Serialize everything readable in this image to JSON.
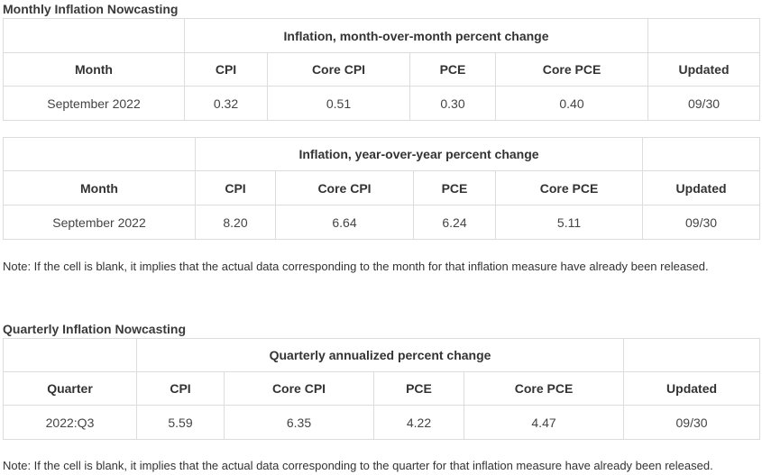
{
  "monthly": {
    "title": "Monthly Inflation Nowcasting",
    "mom": {
      "group_header": "Inflation, month-over-month percent change",
      "columns": [
        "Month",
        "CPI",
        "Core CPI",
        "PCE",
        "Core PCE",
        "Updated"
      ],
      "rows": [
        [
          "September 2022",
          "0.32",
          "0.51",
          "0.30",
          "0.40",
          "09/30"
        ]
      ]
    },
    "yoy": {
      "group_header": "Inflation, year-over-year percent change",
      "columns": [
        "Month",
        "CPI",
        "Core CPI",
        "PCE",
        "Core PCE",
        "Updated"
      ],
      "rows": [
        [
          "September 2022",
          "8.20",
          "6.64",
          "6.24",
          "5.11",
          "09/30"
        ]
      ]
    },
    "note": "Note: If the cell is blank, it implies that the actual data corresponding to the month for that inflation measure have already been released."
  },
  "quarterly": {
    "title": "Quarterly Inflation Nowcasting",
    "table": {
      "group_header": "Quarterly annualized percent change",
      "columns": [
        "Quarter",
        "CPI",
        "Core CPI",
        "PCE",
        "Core PCE",
        "Updated"
      ],
      "rows": [
        [
          "2022:Q3",
          "5.59",
          "6.35",
          "4.22",
          "4.47",
          "09/30"
        ]
      ]
    },
    "note": "Note: If the cell is blank, it implies that the actual data corresponding to the quarter for that inflation measure have already been released."
  }
}
